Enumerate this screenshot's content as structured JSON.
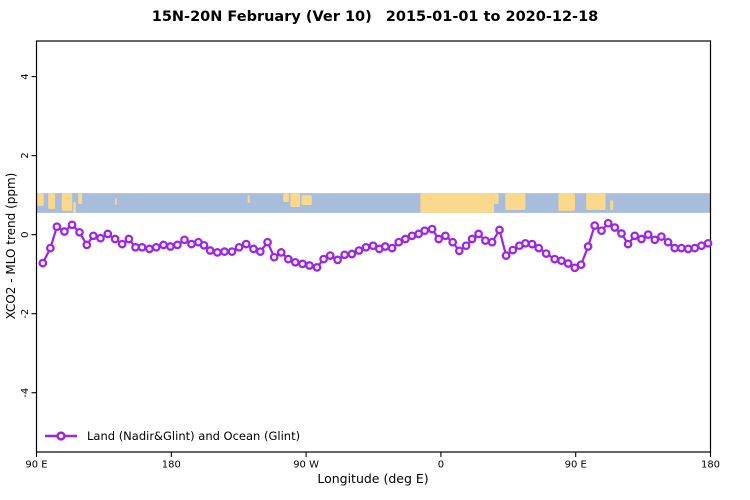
{
  "title": {
    "text": "15N-20N February (Ver 10)",
    "date_range": "2015-01-01 to 2020-12-18"
  },
  "legend": {
    "label": "Land (Nadir&Glint) and Ocean (Glint)"
  },
  "colors": {
    "series": "#9d24e6",
    "marker_fill": "#ffffff",
    "ocean": "#a8bcdc",
    "land": "#fbd98c",
    "frame": "#000000",
    "text": "#000000",
    "background": "#ffffff"
  },
  "chart_data": {
    "type": "line",
    "title": "15N-20N February (Ver 10)   2015-01-01 to 2020-12-18",
    "xlabel": "Longitude (deg E)",
    "ylabel": "XCO2 - MLO trend (ppm)",
    "grid": false,
    "legend_position": "bottom-left",
    "x_axis": {
      "min": 0,
      "max": 450,
      "note": "axis shown in degrees east starting at 90E and wrapping 450 degrees",
      "ticks": [
        {
          "pos": 0,
          "label": "90 E"
        },
        {
          "pos": 90,
          "label": "180"
        },
        {
          "pos": 180,
          "label": "90 W"
        },
        {
          "pos": 270,
          "label": "0"
        },
        {
          "pos": 360,
          "label": "90 E"
        },
        {
          "pos": 450,
          "label": "180"
        }
      ]
    },
    "y_axis": {
      "min": -5.5,
      "max": 4.9,
      "ticks": [
        {
          "v": 4,
          "label": "4"
        },
        {
          "v": 2,
          "label": "2"
        },
        {
          "v": 0,
          "label": "0"
        },
        {
          "v": -2,
          "label": "-2"
        },
        {
          "v": -4,
          "label": "-4"
        }
      ]
    },
    "map_band": {
      "v_top": 1.05,
      "v_bottom": 0.55,
      "land_patches": [
        {
          "x0": 0.4,
          "x1": 4.8,
          "t": 0,
          "b": 0.65
        },
        {
          "x0": 7.8,
          "x1": 12.4,
          "t": 0,
          "b": 0.8
        },
        {
          "x0": 16.9,
          "x1": 23.8,
          "t": 0,
          "b": 0.9
        },
        {
          "x0": 24.5,
          "x1": 26.2,
          "t": 0.45,
          "b": 1
        },
        {
          "x0": 27.8,
          "x1": 30.5,
          "t": 0,
          "b": 0.55
        },
        {
          "x0": 52.4,
          "x1": 53.6,
          "t": 0.25,
          "b": 0.6
        },
        {
          "x0": 141,
          "x1": 142.4,
          "t": 0.1,
          "b": 0.5
        },
        {
          "x0": 164.7,
          "x1": 168.5,
          "t": 0,
          "b": 0.45
        },
        {
          "x0": 169.5,
          "x1": 176,
          "t": 0,
          "b": 0.7
        },
        {
          "x0": 177,
          "x1": 183.8,
          "t": 0.1,
          "b": 0.6
        },
        {
          "x0": 256.3,
          "x1": 305.5,
          "t": 0,
          "b": 1
        },
        {
          "x0": 305.5,
          "x1": 308.5,
          "t": 0,
          "b": 0.55
        },
        {
          "x0": 313,
          "x1": 326.4,
          "t": 0,
          "b": 0.85
        },
        {
          "x0": 348.5,
          "x1": 359.5,
          "t": 0,
          "b": 0.9
        },
        {
          "x0": 367,
          "x1": 379.9,
          "t": 0,
          "b": 0.85
        },
        {
          "x0": 383,
          "x1": 385,
          "t": 0.35,
          "b": 0.85
        }
      ]
    },
    "series": [
      {
        "name": "Land (Nadir&Glint) and Ocean (Glint)",
        "marker": "open-circle",
        "points": [
          [
            4.2,
            -0.72
          ],
          [
            9.3,
            -0.34
          ],
          [
            13.6,
            0.2
          ],
          [
            18.6,
            0.08
          ],
          [
            23.8,
            0.25
          ],
          [
            28.7,
            0.06
          ],
          [
            33.6,
            -0.26
          ],
          [
            38,
            -0.03
          ],
          [
            42.7,
            -0.09
          ],
          [
            47.6,
            0.02
          ],
          [
            52.5,
            -0.11
          ],
          [
            57.2,
            -0.24
          ],
          [
            61.7,
            -0.11
          ],
          [
            66.1,
            -0.32
          ],
          [
            70.5,
            -0.32
          ],
          [
            75.4,
            -0.36
          ],
          [
            79.9,
            -0.32
          ],
          [
            84.8,
            -0.26
          ],
          [
            89.4,
            -0.3
          ],
          [
            94.1,
            -0.26
          ],
          [
            98.8,
            -0.13
          ],
          [
            103.5,
            -0.24
          ],
          [
            108.1,
            -0.19
          ],
          [
            111.8,
            -0.27
          ],
          [
            116,
            -0.4
          ],
          [
            120.8,
            -0.45
          ],
          [
            125.5,
            -0.43
          ],
          [
            130.5,
            -0.43
          ],
          [
            135.3,
            -0.32
          ],
          [
            140,
            -0.24
          ],
          [
            144.9,
            -0.36
          ],
          [
            149.4,
            -0.43
          ],
          [
            154.3,
            -0.19
          ],
          [
            158.7,
            -0.57
          ],
          [
            163.4,
            -0.45
          ],
          [
            168.1,
            -0.62
          ],
          [
            172.8,
            -0.7
          ],
          [
            177.6,
            -0.74
          ],
          [
            182.3,
            -0.78
          ],
          [
            187.3,
            -0.83
          ],
          [
            191.7,
            -0.62
          ],
          [
            196.1,
            -0.53
          ],
          [
            201,
            -0.64
          ],
          [
            205.7,
            -0.51
          ],
          [
            210.6,
            -0.49
          ],
          [
            215.3,
            -0.4
          ],
          [
            220,
            -0.32
          ],
          [
            224.7,
            -0.28
          ],
          [
            228.9,
            -0.36
          ],
          [
            232.9,
            -0.3
          ],
          [
            237.4,
            -0.34
          ],
          [
            241.8,
            -0.19
          ],
          [
            246.3,
            -0.11
          ],
          [
            250.7,
            -0.03
          ],
          [
            255.2,
            0.02
          ],
          [
            259.2,
            0.1
          ],
          [
            264.1,
            0.14
          ],
          [
            268.5,
            -0.11
          ],
          [
            273,
            -0.03
          ],
          [
            277.9,
            -0.19
          ],
          [
            282.3,
            -0.41
          ],
          [
            286.8,
            -0.28
          ],
          [
            290.8,
            -0.11
          ],
          [
            295.2,
            0.02
          ],
          [
            299.7,
            -0.15
          ],
          [
            304.2,
            -0.19
          ],
          [
            309.1,
            0.12
          ],
          [
            313.5,
            -0.53
          ],
          [
            318,
            -0.39
          ],
          [
            322.4,
            -0.28
          ],
          [
            326.4,
            -0.22
          ],
          [
            330.9,
            -0.24
          ],
          [
            335.3,
            -0.34
          ],
          [
            340.3,
            -0.48
          ],
          [
            346,
            -0.62
          ],
          [
            350.5,
            -0.66
          ],
          [
            355,
            -0.73
          ],
          [
            359.4,
            -0.84
          ],
          [
            363.6,
            -0.76
          ],
          [
            368.3,
            -0.3
          ],
          [
            372.7,
            0.23
          ],
          [
            377.2,
            0.1
          ],
          [
            381.7,
            0.29
          ],
          [
            386.1,
            0.18
          ],
          [
            390.6,
            0.03
          ],
          [
            395,
            -0.24
          ],
          [
            399.4,
            -0.03
          ],
          [
            403.9,
            -0.11
          ],
          [
            408.4,
            0
          ],
          [
            412.8,
            -0.13
          ],
          [
            417.2,
            -0.05
          ],
          [
            421.7,
            -0.19
          ],
          [
            426.1,
            -0.34
          ],
          [
            430.6,
            -0.34
          ],
          [
            435.1,
            -0.36
          ],
          [
            439.5,
            -0.34
          ],
          [
            444,
            -0.28
          ],
          [
            448.4,
            -0.22
          ]
        ]
      }
    ]
  }
}
